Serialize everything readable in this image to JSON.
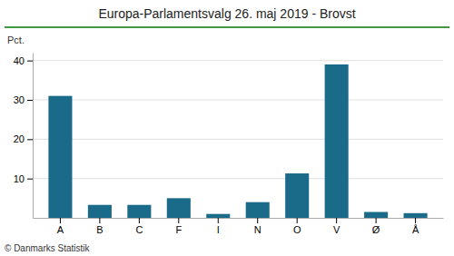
{
  "chart_data": {
    "type": "bar",
    "title": "Europa-Parlamentsvalg 26. maj 2019 - Brovst",
    "categories": [
      "A",
      "B",
      "C",
      "F",
      "I",
      "N",
      "O",
      "V",
      "Ø",
      "Å"
    ],
    "values": [
      31.0,
      3.3,
      3.3,
      5.0,
      1.0,
      4.0,
      11.3,
      39.0,
      1.5,
      1.2
    ],
    "color": "#1a6a8a",
    "ylabel": "Pct.",
    "annotations": [
      "© Danmarks Statistik"
    ],
    "ylim": [
      0,
      42
    ],
    "yticks": [
      10,
      20,
      30,
      40
    ],
    "grid": true
  }
}
